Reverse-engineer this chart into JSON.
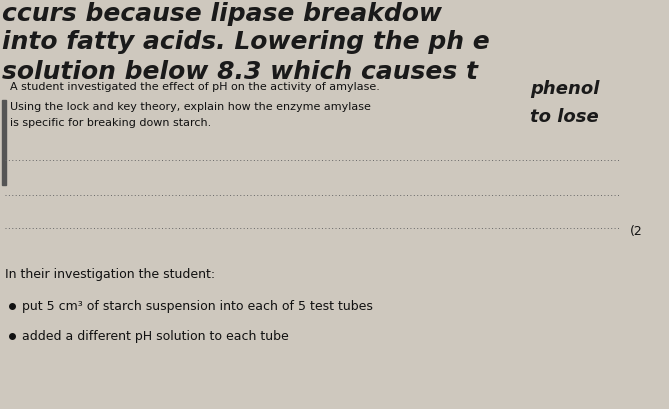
{
  "background_color": "#cec8be",
  "hw_line1": "ccurs because lipase breakdow",
  "hw_line2": "into fatty acids. Lowering the ph e",
  "hw_line3": "solution below 8.3 which causes t",
  "hw_extra1": "phenol",
  "hw_extra2": "to lose",
  "printed_text_1": "A student investigated the effect of pH on the activity of amylase.",
  "printed_text_2": "Using the lock and key theory, explain how the enzyme amylase",
  "printed_text_3": "is specific for breaking down starch.",
  "mark_label": "(2",
  "bottom_section_title": "In their investigation the student:",
  "bullet_points": [
    "put 5 cm³ of starch suspension into each of 5 test tubes",
    "added a different pH solution to each tube"
  ],
  "hw_color": "#1a1a1a",
  "printed_color": "#111111",
  "line_color": "#666666",
  "bar_color": "#555555"
}
